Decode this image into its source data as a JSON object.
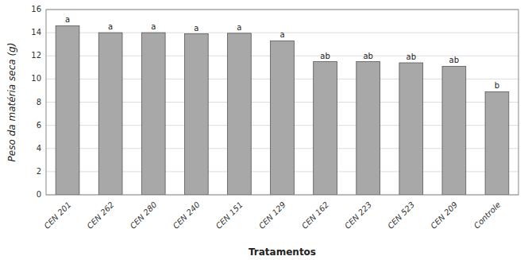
{
  "chart_data": {
    "type": "bar",
    "categories": [
      "CEN 201",
      "CEN 262",
      "CEN 280",
      "CEN 240",
      "CEN 151",
      "CEN 129",
      "CEN 162",
      "CEN 223",
      "CEN 523",
      "CEN 209",
      "Controle"
    ],
    "values": [
      14.6,
      14.0,
      14.0,
      13.9,
      13.95,
      13.3,
      11.5,
      11.5,
      11.4,
      11.1,
      8.9
    ],
    "annotations": [
      "a",
      "a",
      "a",
      "a",
      "a",
      "a",
      "ab",
      "ab",
      "ab",
      "ab",
      "b"
    ],
    "color": "#a8a8a8",
    "xlabel": "Tratamentos",
    "ylabel": "Peso da matéria seca (g)",
    "ylim": [
      0,
      16
    ],
    "yticks": [
      0,
      2,
      4,
      6,
      8,
      10,
      12,
      14,
      16
    ],
    "grid": true
  }
}
